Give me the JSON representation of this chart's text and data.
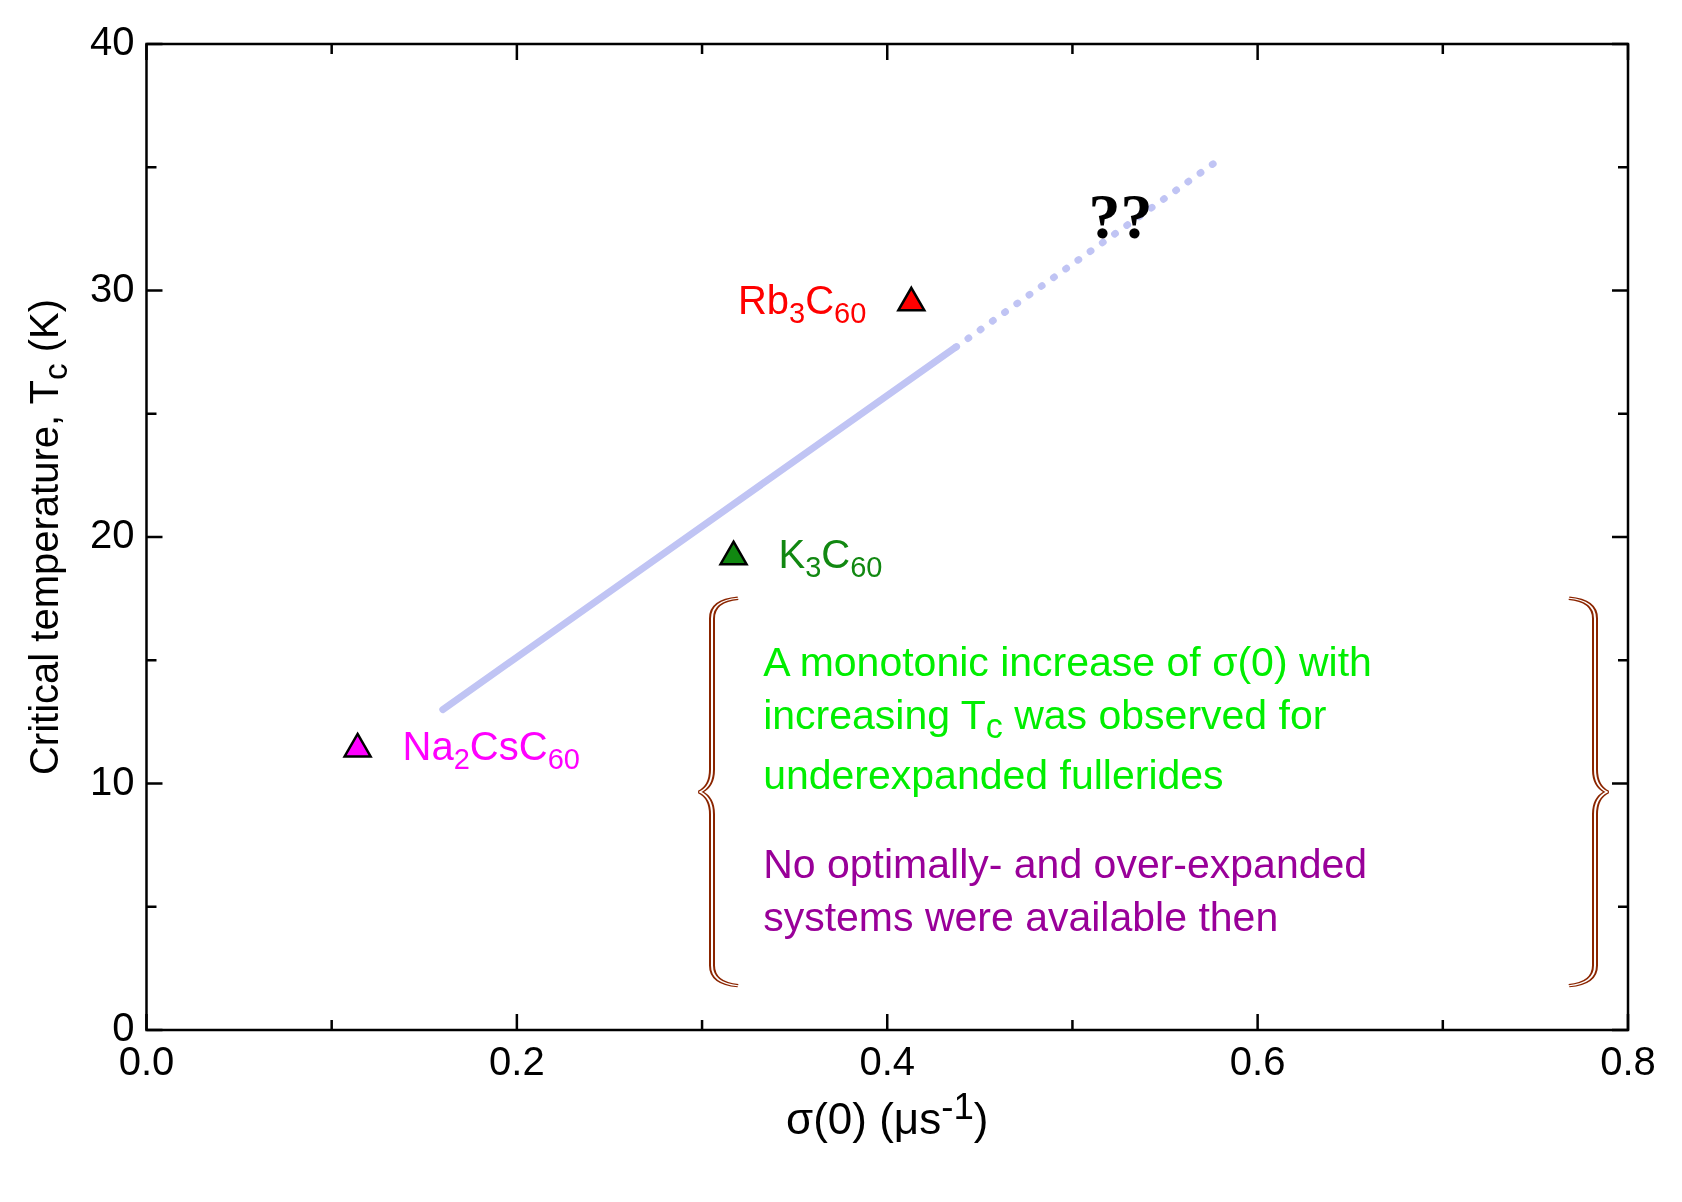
{
  "chart_data": {
    "type": "scatter",
    "xlabel": "σ(0) (μs$^{-1}$)",
    "ylabel": "Critical temperature, T$_{c}$ (K)",
    "xlim": [
      0,
      0.8
    ],
    "xticks": [
      {
        "value": 0,
        "label": "0.0"
      },
      {
        "value": 0.1,
        "label": null
      },
      0.2,
      {
        "value": 0.3,
        "label": null
      },
      0.4,
      {
        "value": 0.5,
        "label": null
      },
      0.6,
      {
        "value": 0.7,
        "label": null
      },
      0.8
    ],
    "ylim": [
      0,
      40
    ],
    "yticks": [
      0,
      {
        "value": 5,
        "label": null
      },
      10,
      {
        "value": 15,
        "label": null
      },
      20,
      {
        "value": 25,
        "label": null
      },
      30,
      {
        "value": 35,
        "label": null
      },
      40
    ],
    "grid": false,
    "legend": false,
    "marker": "triangle",
    "series": [
      {
        "type": "line",
        "marker": "none",
        "color": "#c0c4f4",
        "line_style": "solid",
        "x": [
          0.16,
          0.437
        ],
        "values": [
          13.0,
          27.7
        ]
      },
      {
        "type": "line",
        "marker": "none",
        "color": "#c0c4f4",
        "line_style": "dotted",
        "x": [
          0.437,
          0.579
        ],
        "values": [
          27.7,
          35.3
        ]
      },
      {
        "name": "Na$_{2}$CsC$_{60}$",
        "color": "#ff00ff",
        "x": [
          0.114
        ],
        "values": [
          11.4
        ]
      },
      {
        "name": "K$_{3}$C$_{60}$",
        "color": "#118811",
        "x": [
          0.317
        ],
        "values": [
          19.2
        ]
      },
      {
        "name": "Rb$_{3}$C$_{60}$",
        "color": "#ff0000",
        "x": [
          0.413
        ],
        "values": [
          29.5
        ]
      }
    ],
    "annotations": [
      {
        "text": "??",
        "x": 0.526,
        "y": 32.8
      },
      "A monotonic increase of σ(0) with increasing T$_{c}$ was observed for underexpanded fullerides",
      "No optimally- and over-expanded systems were available then"
    ]
  }
}
